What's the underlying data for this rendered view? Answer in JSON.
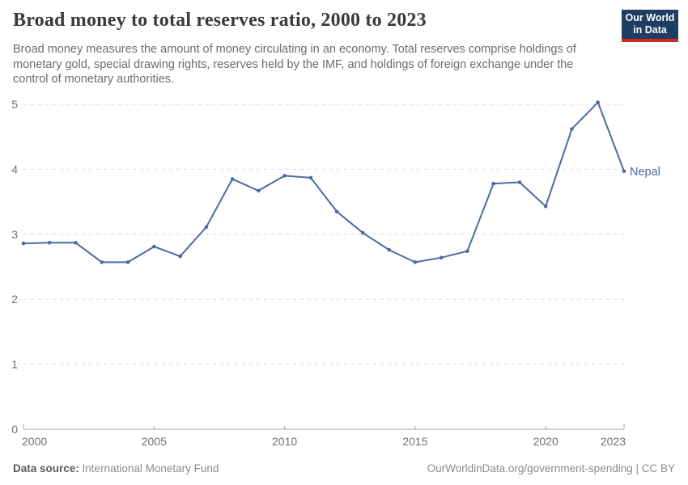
{
  "header": {
    "title": "Broad money to total reserves ratio, 2000 to 2023",
    "subtitle": "Broad money measures the amount of money circulating in an economy. Total reserves comprise holdings of monetary gold, special drawing rights, reserves held by the IMF, and holdings of foreign exchange under the control of monetary authorities.",
    "logo": {
      "line1": "Our World",
      "line2": "in Data"
    }
  },
  "footer": {
    "source_label": "Data source:",
    "source_value": "International Monetary Fund",
    "attribution": "OurWorldinData.org/government-spending | CC BY"
  },
  "colors": {
    "series_line": "#4c6ba0",
    "grid_line": "#dadada",
    "axis_line": "#a8a8a8",
    "tick_text": "#707070",
    "logo_bg": "#1d3d63",
    "logo_bar": "#cc2a1d"
  },
  "chart_data": {
    "type": "line",
    "title": "Broad money to total reserves ratio, 2000 to 2023",
    "xlabel": "",
    "ylabel": "",
    "x": [
      2000,
      2001,
      2002,
      2003,
      2004,
      2005,
      2006,
      2007,
      2008,
      2009,
      2010,
      2011,
      2012,
      2013,
      2014,
      2015,
      2016,
      2017,
      2018,
      2019,
      2020,
      2021,
      2022,
      2023
    ],
    "series": [
      {
        "name": "Nepal",
        "color": "#4c6ba0",
        "values": [
          2.86,
          2.87,
          2.87,
          2.57,
          2.57,
          2.81,
          2.66,
          3.11,
          3.85,
          3.67,
          3.9,
          3.87,
          3.35,
          3.02,
          2.76,
          2.57,
          2.64,
          2.74,
          3.78,
          3.8,
          3.43,
          4.62,
          5.03,
          3.97
        ]
      }
    ],
    "xlim": [
      2000,
      2023
    ],
    "ylim": [
      0,
      5
    ],
    "x_ticks": [
      2000,
      2005,
      2010,
      2015,
      2020,
      2023
    ],
    "y_ticks": [
      0,
      1,
      2,
      3,
      4,
      5
    ],
    "grid": "horizontal-dashed",
    "legend": "end-of-line-label"
  }
}
